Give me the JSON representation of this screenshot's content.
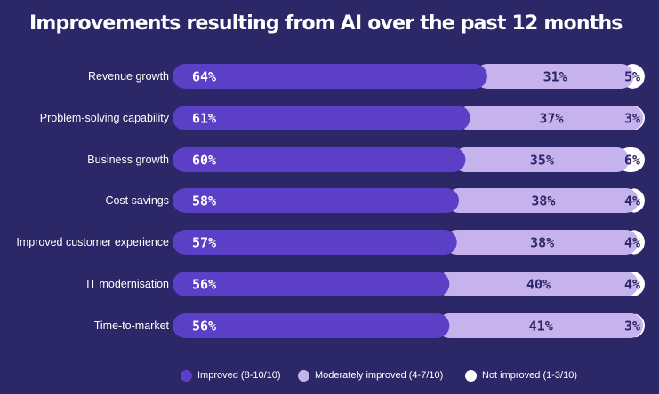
{
  "chart_data": {
    "type": "bar",
    "stacked": true,
    "orientation": "horizontal",
    "title": "Improvements resulting from AI over the past 12 months",
    "categories": [
      "Revenue growth",
      "Problem-solving capability",
      "Business growth",
      "Cost savings",
      "Improved customer experience",
      "IT modernisation",
      "Time-to-market"
    ],
    "series": [
      {
        "name": "Improved (8-10/10)",
        "color": "#5b3fc7",
        "values": [
          64,
          61,
          60,
          58,
          57,
          56,
          56
        ]
      },
      {
        "name": "Moderately improved (4-7/10)",
        "color": "#c6b3ee",
        "values": [
          31,
          37,
          35,
          38,
          38,
          40,
          41
        ]
      },
      {
        "name": "Not improved (1-3/10)",
        "color": "#ffffff",
        "values": [
          5,
          3,
          6,
          4,
          4,
          4,
          3
        ]
      }
    ],
    "value_suffix": "%",
    "legend_position": "bottom",
    "xlim": [
      0,
      100
    ]
  }
}
